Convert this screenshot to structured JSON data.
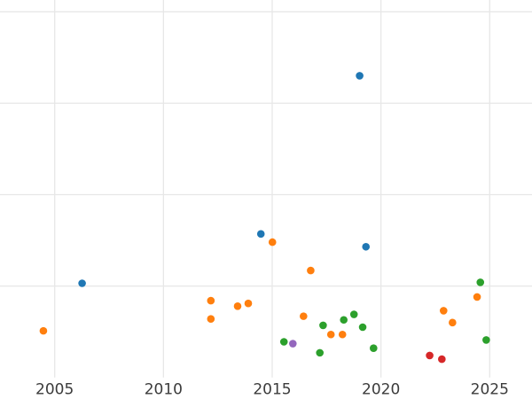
{
  "chart": {
    "background_color": "#ffffff",
    "grid_color": "#e7e7e7",
    "tick_label_color": "#3b3b3b",
    "point_colors": {
      "blue": "#1f77b4",
      "orange": "#ff7f0e",
      "green": "#2ca02c",
      "red": "#d62728",
      "purple": "#9467bd"
    }
  },
  "chart_data": {
    "type": "scatter",
    "title": "",
    "xlabel": "",
    "ylabel": "",
    "grid": true,
    "legend_position": "none",
    "xlim": [
      2002.485,
      2026.945
    ],
    "ylim": [
      0,
      4.129
    ],
    "x_ticks": [
      2005,
      2010,
      2015,
      2020,
      2025
    ],
    "x_tick_labels": [
      "2005",
      "2010",
      "2015",
      "2020",
      "2025"
    ],
    "y_gridlines": [
      1,
      2,
      3,
      4
    ],
    "series": [
      {
        "name": "series-blue",
        "color": "#1f77b4",
        "points": [
          {
            "x": 2006.26,
            "y": 1.03
          },
          {
            "x": 2014.48,
            "y": 1.57
          },
          {
            "x": 2019.02,
            "y": 3.3
          },
          {
            "x": 2019.31,
            "y": 1.43
          }
        ]
      },
      {
        "name": "series-orange",
        "color": "#ff7f0e",
        "points": [
          {
            "x": 2004.48,
            "y": 0.51
          },
          {
            "x": 2012.18,
            "y": 0.84
          },
          {
            "x": 2012.18,
            "y": 0.64
          },
          {
            "x": 2013.41,
            "y": 0.78
          },
          {
            "x": 2013.9,
            "y": 0.81
          },
          {
            "x": 2015.01,
            "y": 1.48
          },
          {
            "x": 2016.44,
            "y": 0.67
          },
          {
            "x": 2016.77,
            "y": 1.17
          },
          {
            "x": 2017.7,
            "y": 0.47
          },
          {
            "x": 2018.23,
            "y": 0.47
          },
          {
            "x": 2022.88,
            "y": 0.73
          },
          {
            "x": 2023.29,
            "y": 0.6
          },
          {
            "x": 2024.42,
            "y": 0.88
          }
        ]
      },
      {
        "name": "series-green",
        "color": "#2ca02c",
        "points": [
          {
            "x": 2015.54,
            "y": 0.39
          },
          {
            "x": 2017.19,
            "y": 0.27
          },
          {
            "x": 2017.34,
            "y": 0.57
          },
          {
            "x": 2018.29,
            "y": 0.63
          },
          {
            "x": 2018.76,
            "y": 0.69
          },
          {
            "x": 2019.16,
            "y": 0.55
          },
          {
            "x": 2019.66,
            "y": 0.32
          },
          {
            "x": 2024.57,
            "y": 1.04
          },
          {
            "x": 2024.84,
            "y": 0.41
          }
        ]
      },
      {
        "name": "series-red",
        "color": "#d62728",
        "points": [
          {
            "x": 2022.24,
            "y": 0.24
          },
          {
            "x": 2022.8,
            "y": 0.2
          }
        ]
      },
      {
        "name": "series-purple",
        "color": "#9467bd",
        "points": [
          {
            "x": 2015.95,
            "y": 0.37
          }
        ]
      }
    ]
  }
}
